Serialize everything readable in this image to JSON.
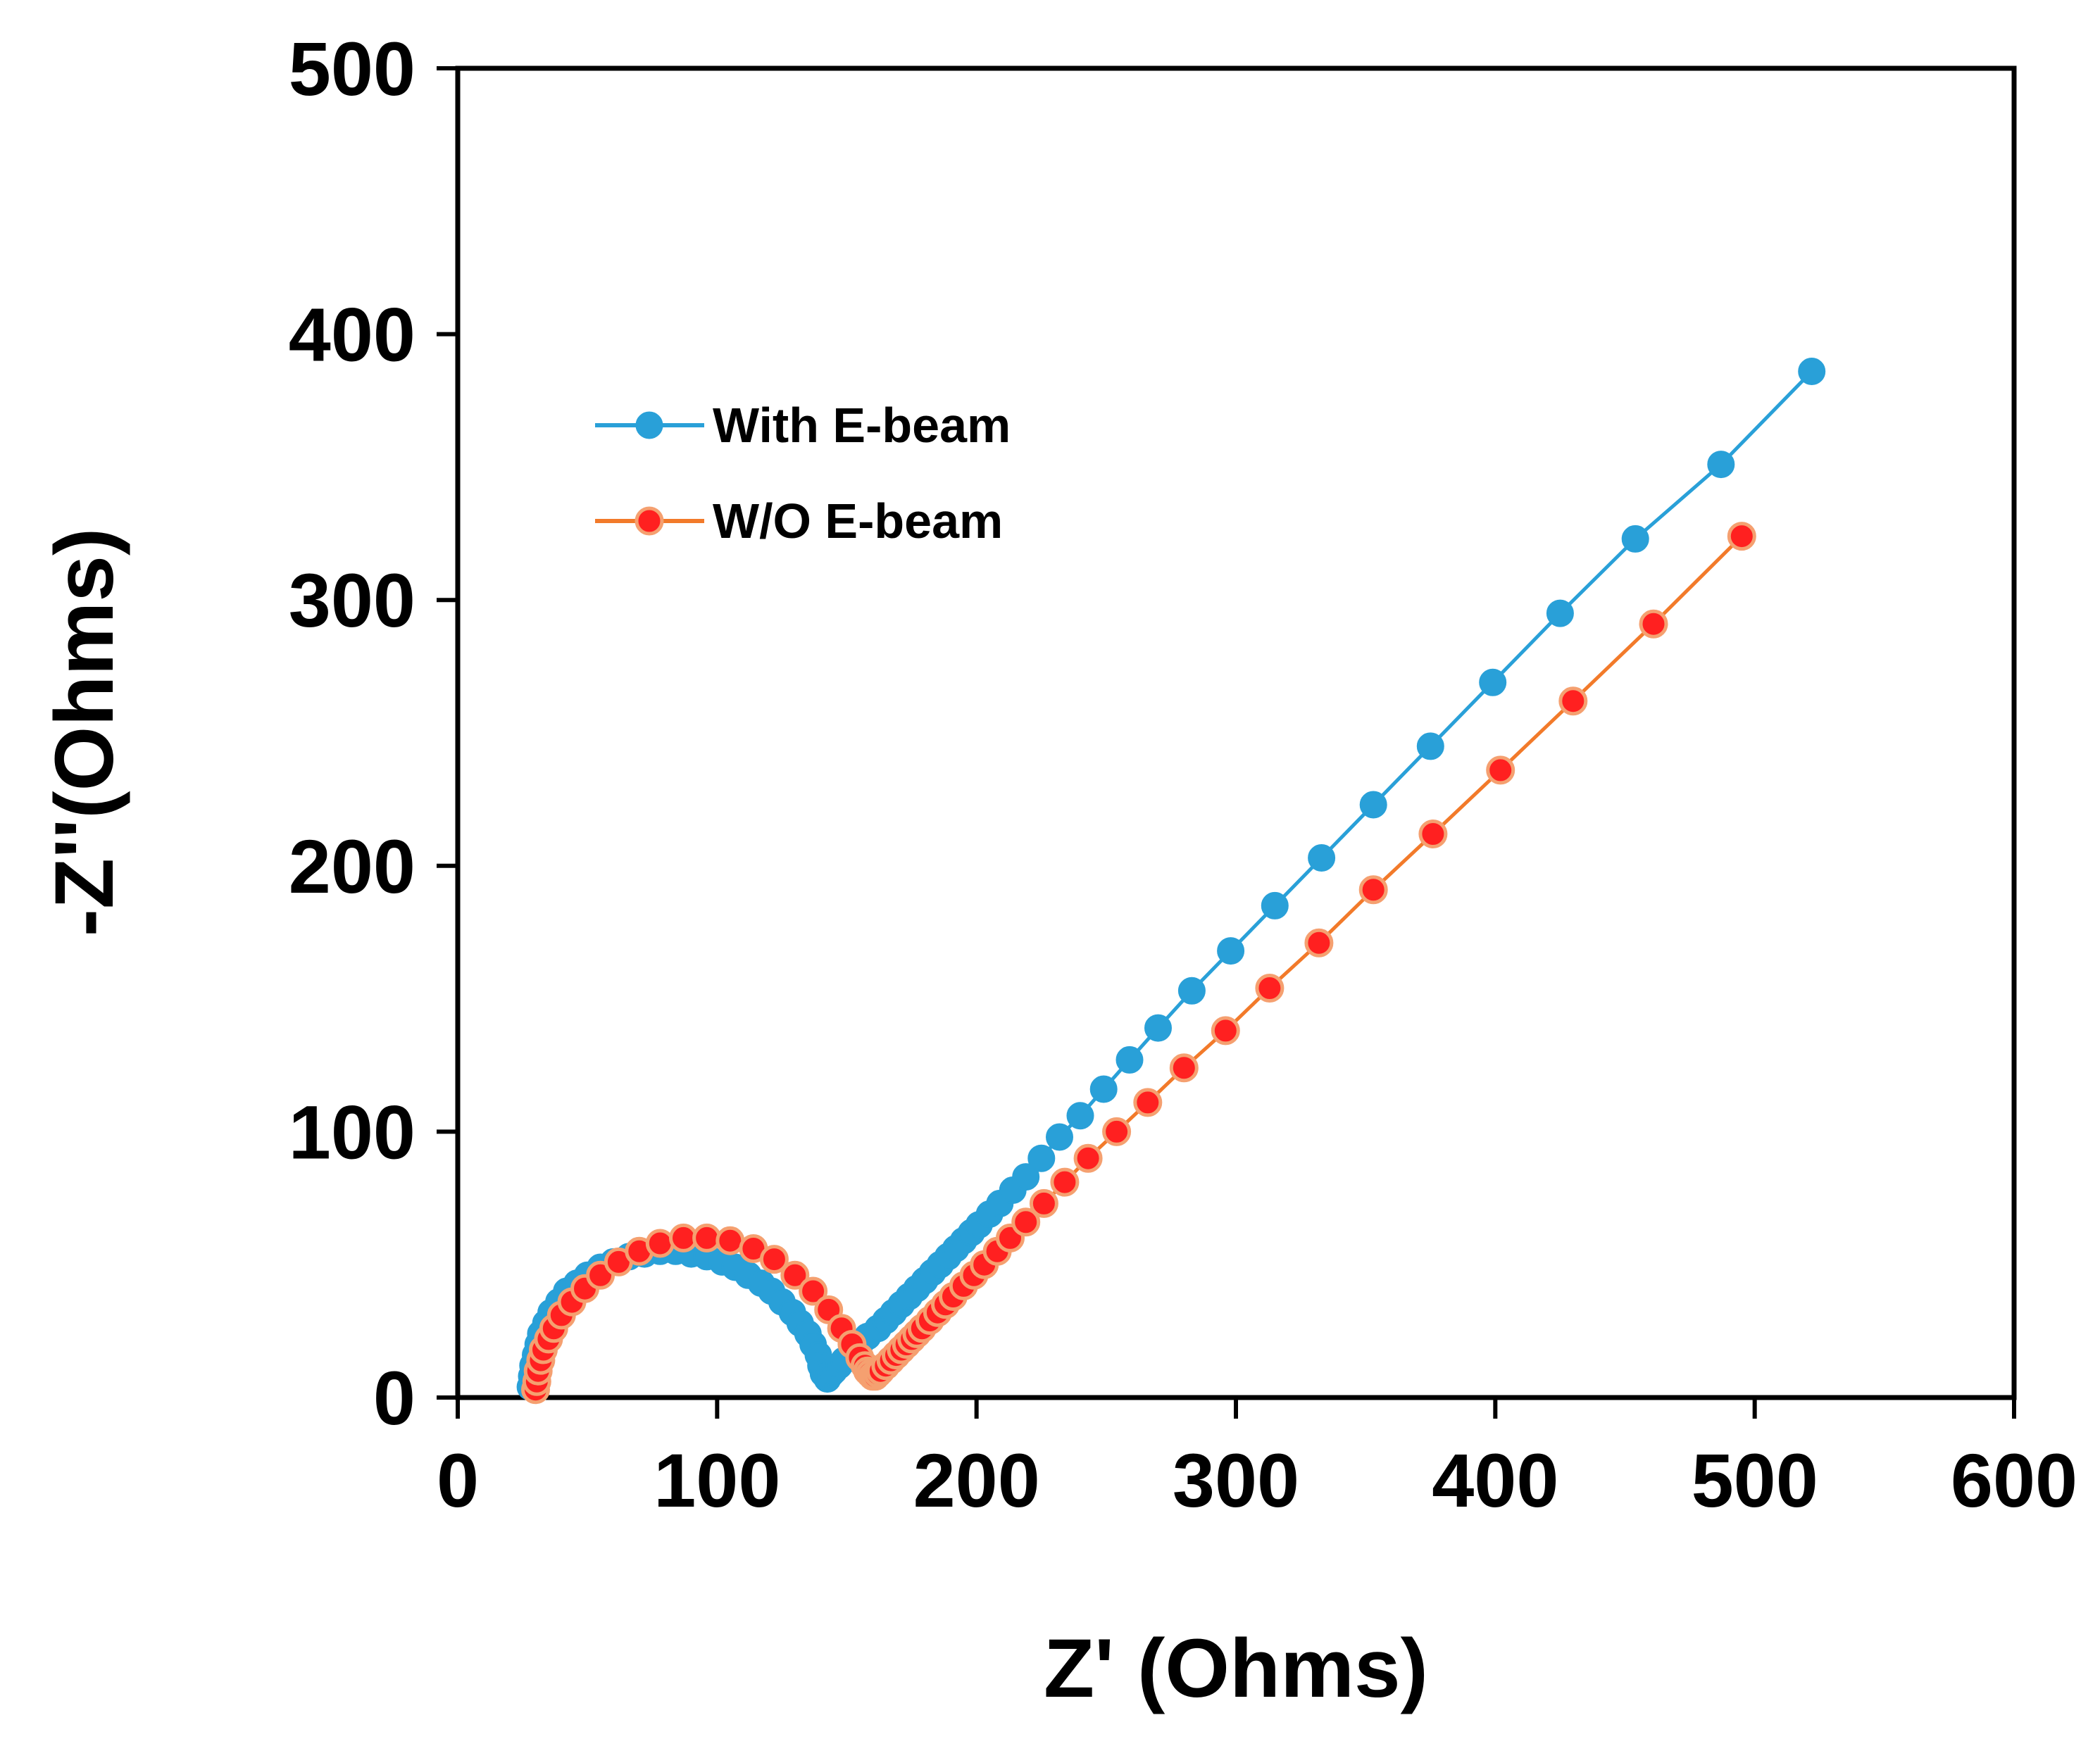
{
  "chart_data": {
    "type": "scatter",
    "title": "",
    "xlabel": "Z' (Ohms)",
    "ylabel": "-Z''(Ohms)",
    "xlim": [
      0,
      600
    ],
    "ylim": [
      0,
      500
    ],
    "xticks": [
      0,
      100,
      200,
      300,
      400,
      500,
      600
    ],
    "yticks": [
      0,
      100,
      200,
      300,
      400,
      500
    ],
    "grid": false,
    "legend_position": "upper-left",
    "series": [
      {
        "name": "With E-beam",
        "color": "#29A0D8",
        "marker_fill": "#29A0D8",
        "marker_stroke": "#29A0D8",
        "x": [
          28,
          28.5,
          29,
          30,
          31,
          32,
          34,
          36,
          39,
          42,
          46,
          50,
          55,
          60,
          66,
          72,
          78,
          84,
          90,
          96,
          102,
          107,
          112,
          117,
          121,
          125,
          129,
          132,
          135,
          137,
          139,
          140,
          141,
          142,
          142.5,
          143,
          144,
          145,
          147,
          149,
          152,
          155,
          158,
          162,
          165,
          168,
          171,
          174,
          177,
          180,
          183,
          186,
          189,
          192,
          195,
          198,
          201,
          205,
          209,
          214,
          219,
          225,
          232,
          240,
          249,
          259,
          270,
          283,
          298,
          315,
          333,
          353,
          375,
          399,
          425,
          454,
          487,
          522
        ],
        "y": [
          4,
          8,
          12,
          16,
          20,
          24,
          28,
          32,
          36,
          40,
          43,
          46,
          49,
          51,
          53,
          54,
          55,
          55,
          54,
          53,
          51,
          49,
          46,
          43,
          40,
          36,
          32,
          28,
          24,
          20,
          16,
          12,
          9,
          8,
          7,
          8,
          9,
          10,
          12,
          14,
          17,
          20,
          23,
          26,
          29,
          32,
          35,
          38,
          41,
          44,
          47,
          50,
          53,
          56,
          59,
          62,
          65,
          69,
          73,
          78,
          83,
          90,
          98,
          106,
          116,
          127,
          139,
          153,
          168,
          185,
          203,
          223,
          245,
          269,
          295,
          323,
          351,
          386
        ]
      },
      {
        "name": "W/O E-beam",
        "color": "#F27A2A",
        "marker_fill": "#FF2020",
        "marker_stroke": "#F5A070",
        "x": [
          30,
          30.5,
          31,
          32,
          33,
          35,
          37,
          40,
          44,
          49,
          55,
          62,
          70,
          78,
          87,
          96,
          105,
          114,
          122,
          130,
          137,
          143,
          148,
          152,
          155,
          157,
          158,
          159,
          160,
          161,
          162,
          163,
          165,
          167,
          169,
          171,
          173,
          175,
          177,
          179,
          182,
          185,
          188,
          191,
          195,
          199,
          203,
          208,
          213,
          219,
          226,
          234,
          243,
          254,
          266,
          280,
          296,
          313,
          332,
          353,
          376,
          402,
          430,
          461,
          495
        ],
        "y": [
          3,
          6,
          10,
          14,
          18,
          22,
          26,
          31,
          36,
          41,
          46,
          51,
          55,
          58,
          60,
          60,
          59,
          56,
          52,
          46,
          40,
          33,
          26,
          20,
          15,
          12,
          10,
          9,
          8,
          8,
          9,
          10,
          12,
          14,
          16,
          18,
          20,
          22,
          24,
          26,
          29,
          32,
          35,
          38,
          42,
          46,
          50,
          55,
          60,
          66,
          73,
          81,
          90,
          100,
          111,
          124,
          138,
          154,
          171,
          191,
          212,
          236,
          262,
          291,
          324
        ]
      }
    ]
  }
}
